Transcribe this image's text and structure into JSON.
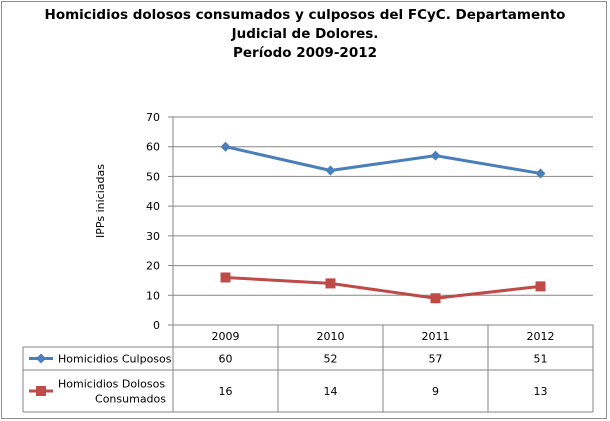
{
  "chart_data": {
    "type": "line",
    "title_lines": [
      "Homicidios dolosos consumados y culposos del FCyC. Departamento",
      "Judicial de Dolores.",
      "Período 2009-2012"
    ],
    "ylabel": "IPPs iniciadas",
    "xlabel": "",
    "categories": [
      "2009",
      "2010",
      "2011",
      "2012"
    ],
    "ylim": [
      0,
      70
    ],
    "yticks": [
      "0",
      "10",
      "20",
      "30",
      "40",
      "50",
      "60",
      "70"
    ],
    "grid": true,
    "legend": "data-table-left",
    "series": [
      {
        "name_lines": [
          "Homicidios Culposos"
        ],
        "values": [
          60,
          52,
          57,
          51
        ],
        "value_labels": [
          "60",
          "52",
          "57",
          "51"
        ],
        "color": "#4a7ebb",
        "marker": "diamond"
      },
      {
        "name_lines": [
          "Homicidios Dolosos",
          "Consumados"
        ],
        "values": [
          16,
          14,
          9,
          13
        ],
        "value_labels": [
          "16",
          "14",
          "9",
          "13"
        ],
        "color": "#be4b48",
        "marker": "square"
      }
    ]
  }
}
